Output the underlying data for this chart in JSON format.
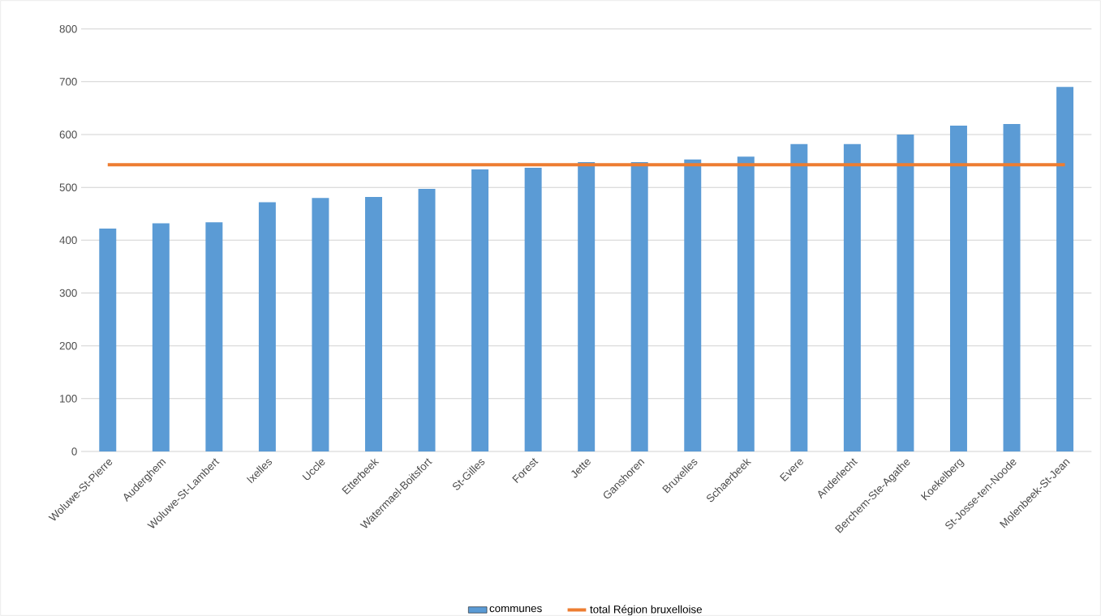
{
  "chart_data": {
    "type": "bar",
    "categories": [
      "Woluwe-St-Pierre",
      "Auderghem",
      "Woluwe-St-Lambert",
      "Ixelles",
      "Uccle",
      "Etterbeek",
      "Watermael-Boitsfort",
      "St-Gilles",
      "Forest",
      "Jette",
      "Ganshoren",
      "Bruxelles",
      "Schaerbeek",
      "Evere",
      "Anderlecht",
      "Berchem-Ste-Agathe",
      "Koekelberg",
      "St-Josse-ten-Noode",
      "Molenbeek-St-Jean"
    ],
    "series": [
      {
        "name": "communes",
        "color": "#5b9bd5",
        "values": [
          422,
          432,
          434,
          472,
          480,
          482,
          497,
          534,
          537,
          548,
          548,
          553,
          558,
          582,
          582,
          600,
          617,
          620,
          690
        ]
      },
      {
        "name": "total Région bruxelloise",
        "type": "line",
        "color": "#ed7d31",
        "values": [
          543,
          543,
          543,
          543,
          543,
          543,
          543,
          543,
          543,
          543,
          543,
          543,
          543,
          543,
          543,
          543,
          543,
          543,
          543
        ]
      }
    ],
    "ylim": [
      0,
      800
    ],
    "yticks": [
      0,
      100,
      200,
      300,
      400,
      500,
      600,
      700,
      800
    ],
    "grid": "y",
    "legend": "bottom"
  }
}
